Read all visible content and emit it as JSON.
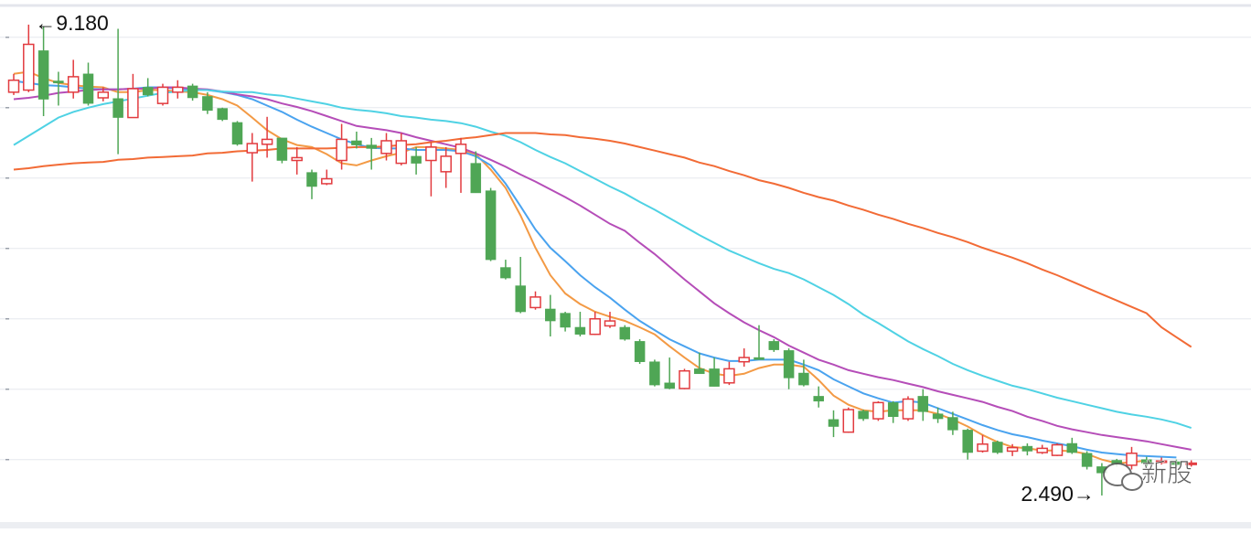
{
  "chart_data": {
    "type": "candlestick",
    "open": [
      8.22,
      8.25,
      8.81,
      8.38,
      8.22,
      8.48,
      8.14,
      8.13,
      7.86,
      8.29,
      8.06,
      8.22,
      8.31,
      8.16,
      7.99,
      7.79,
      7.36,
      7.48,
      7.57,
      7.25,
      7.08,
      6.92,
      7.25,
      7.53,
      7.47,
      7.35,
      7.21,
      7.31,
      7.25,
      7.09,
      7.35,
      7.21,
      6.82,
      5.73,
      5.47,
      5.16,
      5.14,
      5.08,
      4.88,
      4.78,
      4.9,
      4.88,
      4.68,
      4.39,
      4.09,
      4.01,
      4.29,
      4.29,
      4.09,
      4.39,
      4.45,
      4.68,
      4.55,
      4.23,
      3.9,
      3.57,
      3.39,
      3.69,
      3.58,
      3.81,
      3.58,
      3.9,
      3.65,
      3.6,
      3.42,
      3.12,
      3.25,
      3.12,
      3.19,
      3.1,
      3.06,
      3.23,
      3.09,
      2.9,
      2.99,
      2.92,
      3.0,
      2.96,
      2.97,
      2.93
    ],
    "high": [
      8.48,
      9.18,
      9.15,
      8.51,
      8.68,
      8.64,
      8.29,
      9.12,
      8.48,
      8.42,
      8.34,
      8.39,
      8.34,
      8.22,
      8.0,
      7.81,
      7.64,
      7.87,
      7.57,
      7.44,
      7.12,
      7.12,
      7.77,
      7.66,
      7.57,
      7.64,
      7.64,
      7.44,
      7.51,
      7.44,
      7.57,
      7.38,
      6.86,
      5.84,
      5.88,
      5.39,
      5.34,
      5.1,
      5.1,
      5.1,
      5.1,
      4.91,
      4.71,
      4.42,
      4.45,
      4.29,
      4.52,
      4.45,
      4.39,
      4.58,
      4.91,
      4.71,
      4.58,
      4.42,
      4.04,
      3.7,
      3.74,
      3.71,
      3.83,
      3.83,
      3.9,
      4.0,
      3.74,
      3.68,
      3.44,
      3.35,
      3.27,
      3.22,
      3.23,
      3.21,
      3.23,
      3.31,
      3.12,
      2.95,
      3.01,
      3.18,
      3.04,
      3.03,
      3.0,
      2.99
    ],
    "low": [
      8.18,
      8.22,
      7.88,
      8.03,
      8.13,
      8.03,
      8.09,
      7.34,
      7.86,
      8.16,
      8.03,
      8.13,
      8.1,
      7.91,
      7.81,
      7.46,
      6.95,
      7.29,
      7.21,
      7.05,
      6.7,
      6.9,
      7.12,
      7.42,
      7.12,
      7.25,
      7.18,
      7.05,
      6.74,
      6.86,
      6.79,
      6.79,
      5.82,
      5.56,
      5.08,
      5.13,
      4.75,
      4.82,
      4.75,
      4.77,
      4.87,
      4.69,
      4.36,
      4.04,
      4.0,
      4.0,
      4.22,
      4.04,
      4.06,
      4.32,
      4.42,
      4.53,
      4.0,
      4.04,
      3.74,
      3.32,
      3.38,
      3.55,
      3.55,
      3.52,
      3.55,
      3.55,
      3.52,
      3.35,
      3.0,
      3.1,
      3.08,
      3.05,
      3.06,
      3.08,
      3.05,
      3.08,
      2.86,
      2.49,
      2.9,
      2.86,
      2.9,
      2.93,
      2.9,
      2.9
    ],
    "close": [
      8.39,
      8.9,
      8.12,
      8.35,
      8.44,
      8.06,
      8.22,
      7.86,
      8.27,
      8.18,
      8.29,
      8.29,
      8.14,
      7.96,
      7.83,
      7.48,
      7.49,
      7.55,
      7.25,
      7.29,
      6.88,
      6.99,
      7.55,
      7.47,
      7.42,
      7.53,
      7.53,
      7.21,
      7.44,
      7.31,
      7.48,
      6.79,
      5.84,
      5.58,
      5.1,
      5.31,
      4.97,
      4.88,
      4.78,
      5.0,
      4.97,
      4.71,
      4.39,
      4.06,
      4.01,
      4.26,
      4.22,
      4.04,
      4.29,
      4.45,
      4.42,
      4.56,
      4.16,
      4.06,
      3.83,
      3.47,
      3.71,
      3.58,
      3.81,
      3.61,
      3.86,
      3.68,
      3.58,
      3.42,
      3.1,
      3.22,
      3.1,
      3.17,
      3.12,
      3.16,
      3.21,
      3.1,
      2.9,
      2.81,
      2.94,
      3.09,
      2.95,
      2.98,
      2.93,
      2.95
    ],
    "up_color": "#e23b3f",
    "down_color": "#4fa655",
    "lines": [
      {
        "color": "#f39a45",
        "values": [
          8.48,
          8.51,
          8.42,
          8.35,
          8.32,
          8.3,
          8.29,
          8.22,
          8.22,
          8.25,
          8.25,
          8.23,
          8.22,
          8.18,
          8.12,
          8.03,
          7.86,
          7.68,
          7.55,
          7.47,
          7.44,
          7.34,
          7.21,
          7.18,
          7.25,
          7.31,
          7.36,
          7.44,
          7.44,
          7.42,
          7.4,
          7.34,
          7.12,
          6.86,
          6.47,
          6.01,
          5.62,
          5.36,
          5.21,
          5.1,
          5.03,
          4.97,
          4.88,
          4.78,
          4.61,
          4.45,
          4.3,
          4.22,
          4.19,
          4.22,
          4.3,
          4.35,
          4.35,
          4.32,
          4.13,
          3.91,
          3.78,
          3.7,
          3.68,
          3.7,
          3.7,
          3.7,
          3.65,
          3.57,
          3.47,
          3.35,
          3.25,
          3.18,
          3.16,
          3.13,
          3.13,
          3.12,
          3.08,
          3.0,
          2.95,
          2.96,
          2.99,
          null,
          null,
          null
        ]
      },
      {
        "color": "#4aa3ef",
        "values": [
          8.38,
          8.35,
          8.32,
          8.31,
          8.29,
          8.27,
          8.26,
          8.26,
          8.27,
          8.29,
          8.29,
          8.27,
          8.26,
          8.25,
          8.22,
          8.18,
          8.12,
          8.03,
          7.94,
          7.83,
          7.73,
          7.64,
          7.55,
          7.48,
          7.43,
          7.42,
          7.42,
          7.4,
          7.4,
          7.4,
          7.38,
          7.31,
          7.18,
          6.92,
          6.6,
          6.27,
          6.01,
          5.82,
          5.62,
          5.45,
          5.3,
          5.13,
          4.97,
          4.84,
          4.71,
          4.61,
          4.51,
          4.45,
          4.4,
          4.4,
          4.42,
          4.42,
          4.42,
          4.35,
          4.27,
          4.14,
          4.04,
          3.94,
          3.87,
          3.81,
          3.83,
          3.81,
          3.73,
          3.65,
          3.57,
          3.49,
          3.42,
          3.36,
          3.32,
          3.27,
          3.23,
          3.19,
          3.14,
          3.1,
          3.08,
          3.06,
          3.05,
          3.04,
          3.03,
          null
        ]
      },
      {
        "color": "#b54db8",
        "values": [
          8.12,
          8.14,
          8.17,
          8.21,
          8.23,
          8.25,
          8.26,
          8.26,
          8.27,
          8.27,
          8.29,
          8.29,
          8.27,
          8.26,
          8.23,
          8.19,
          8.16,
          8.12,
          8.06,
          8.01,
          7.95,
          7.88,
          7.81,
          7.74,
          7.71,
          7.68,
          7.64,
          7.58,
          7.53,
          7.48,
          7.43,
          7.35,
          7.26,
          7.16,
          7.05,
          6.95,
          6.84,
          6.73,
          6.61,
          6.48,
          6.35,
          6.25,
          6.08,
          5.92,
          5.74,
          5.56,
          5.39,
          5.22,
          5.08,
          4.95,
          4.84,
          4.74,
          4.62,
          4.52,
          4.42,
          4.35,
          4.27,
          4.22,
          4.17,
          4.13,
          4.08,
          4.03,
          3.97,
          3.92,
          3.87,
          3.82,
          3.75,
          3.69,
          3.61,
          3.55,
          3.48,
          3.43,
          3.39,
          3.35,
          3.32,
          3.29,
          3.26,
          3.22,
          3.18,
          3.14
        ]
      },
      {
        "color": "#4fd2e4",
        "values": [
          7.47,
          7.6,
          7.73,
          7.86,
          7.94,
          8.0,
          8.05,
          8.09,
          8.13,
          8.17,
          8.21,
          8.23,
          8.25,
          8.25,
          8.23,
          8.22,
          8.22,
          8.19,
          8.17,
          8.13,
          8.09,
          8.05,
          8.0,
          7.97,
          7.95,
          7.92,
          7.88,
          7.86,
          7.83,
          7.81,
          7.78,
          7.73,
          7.66,
          7.6,
          7.51,
          7.4,
          7.3,
          7.21,
          7.1,
          6.99,
          6.88,
          6.78,
          6.66,
          6.55,
          6.43,
          6.31,
          6.19,
          6.08,
          5.97,
          5.88,
          5.79,
          5.71,
          5.65,
          5.56,
          5.45,
          5.34,
          5.21,
          5.06,
          4.94,
          4.81,
          4.68,
          4.57,
          4.47,
          4.36,
          4.27,
          4.19,
          4.12,
          4.05,
          4.0,
          3.94,
          3.88,
          3.83,
          3.78,
          3.73,
          3.68,
          3.64,
          3.61,
          3.57,
          3.52,
          3.45
        ]
      },
      {
        "color": "#f26b36",
        "values": [
          7.12,
          7.14,
          7.17,
          7.19,
          7.21,
          7.22,
          7.23,
          7.26,
          7.27,
          7.29,
          7.3,
          7.31,
          7.32,
          7.35,
          7.36,
          7.38,
          7.39,
          7.4,
          7.42,
          7.42,
          7.42,
          7.42,
          7.43,
          7.44,
          7.44,
          7.45,
          7.47,
          7.48,
          7.51,
          7.53,
          7.56,
          7.58,
          7.61,
          7.64,
          7.64,
          7.64,
          7.62,
          7.61,
          7.58,
          7.56,
          7.53,
          7.49,
          7.44,
          7.39,
          7.34,
          7.29,
          7.22,
          7.17,
          7.1,
          7.04,
          6.97,
          6.92,
          6.86,
          6.79,
          6.73,
          6.68,
          6.61,
          6.55,
          6.48,
          6.42,
          6.35,
          6.29,
          6.22,
          6.16,
          6.09,
          6.01,
          5.94,
          5.87,
          5.79,
          5.7,
          5.62,
          5.53,
          5.44,
          5.35,
          5.26,
          5.17,
          5.08,
          4.88,
          4.74,
          4.6
        ]
      }
    ],
    "annotations": [
      {
        "value": 9.18,
        "label": "←9.180"
      },
      {
        "value": 2.49,
        "label": "2.490→"
      }
    ],
    "watermark": "新股",
    "ylim": [
      2.1,
      9.4
    ],
    "yticks": [
      3,
      4,
      5,
      6,
      7,
      8,
      9
    ],
    "grid": true
  }
}
